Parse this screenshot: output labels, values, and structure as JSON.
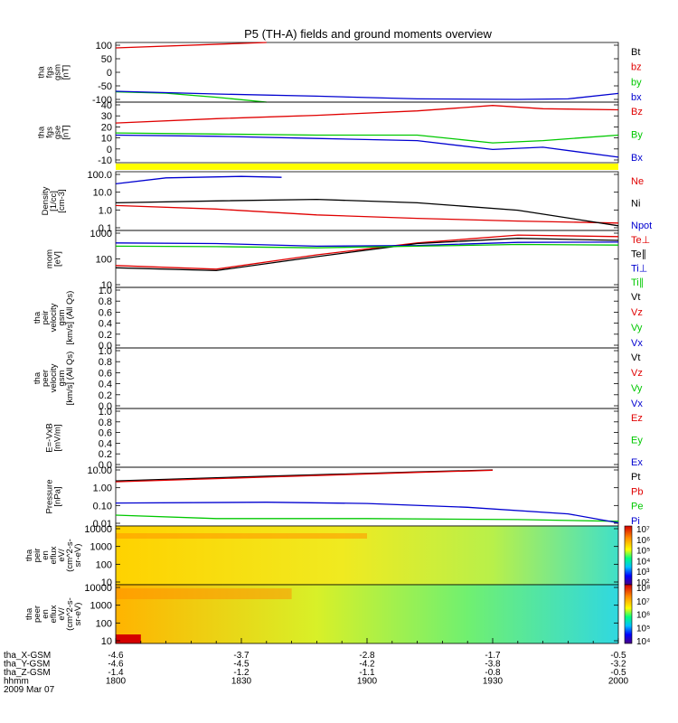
{
  "title": "P5 (TH-A) fields and ground moments overview",
  "colors": {
    "black": "#000000",
    "red": "#e00000",
    "green": "#00c800",
    "blue": "#0000d0",
    "yellow": "#ffff00"
  },
  "chart_data": [
    {
      "id": "fgs_gsm",
      "type": "line",
      "ylabel": [
        "tha",
        "fgs",
        "gsm",
        "[nT]"
      ],
      "yticks": [
        "100",
        "50",
        "0",
        "-50",
        "-100"
      ],
      "ylim": [
        -110,
        110
      ],
      "series": [
        {
          "name": "Bt",
          "color": "#000000",
          "points": []
        },
        {
          "name": "bz",
          "color": "#e00000",
          "points": [
            [
              0,
              90
            ],
            [
              0.3,
              110
            ]
          ]
        },
        {
          "name": "by",
          "color": "#00c800",
          "points": [
            [
              0,
              -72
            ],
            [
              0.1,
              -77
            ],
            [
              0.2,
              -92
            ],
            [
              0.3,
              -110
            ]
          ]
        },
        {
          "name": "bx",
          "color": "#0000d0",
          "points": [
            [
              0,
              -70
            ],
            [
              0.2,
              -80
            ],
            [
              0.4,
              -88
            ],
            [
              0.6,
              -98
            ],
            [
              0.8,
              -100
            ],
            [
              0.9,
              -98
            ],
            [
              1,
              -78
            ]
          ]
        }
      ]
    },
    {
      "id": "fgs_gse",
      "type": "line",
      "ylabel": [
        "tha",
        "fgs",
        "gse",
        "[nT]"
      ],
      "yticks": [
        "40",
        "30",
        "20",
        "10",
        "0",
        "-10"
      ],
      "ylim": [
        -15,
        40
      ],
      "series": [
        {
          "name": "Bz",
          "color": "#e00000",
          "points": [
            [
              0,
              21
            ],
            [
              0.2,
              25
            ],
            [
              0.4,
              28
            ],
            [
              0.6,
              32
            ],
            [
              0.75,
              37
            ],
            [
              0.85,
              34
            ],
            [
              1,
              33
            ]
          ]
        },
        {
          "name": "By",
          "color": "#00c800",
          "points": [
            [
              0,
              12
            ],
            [
              0.2,
              11
            ],
            [
              0.4,
              10
            ],
            [
              0.6,
              10
            ],
            [
              0.75,
              3
            ],
            [
              0.85,
              5
            ],
            [
              1,
              10
            ]
          ]
        },
        {
          "name": "Bx",
          "color": "#0000d0",
          "points": [
            [
              0,
              10
            ],
            [
              0.2,
              9
            ],
            [
              0.4,
              7
            ],
            [
              0.6,
              5
            ],
            [
              0.75,
              -3
            ],
            [
              0.85,
              -1
            ],
            [
              1,
              -10
            ]
          ]
        }
      ]
    },
    {
      "id": "density",
      "type": "line",
      "ylabel": [
        "Density",
        "[1/cc]",
        "[cm-3]"
      ],
      "yticks": [
        "100.0",
        "10.0",
        "1.0",
        "0.1"
      ],
      "ylog": true,
      "ylim": [
        0.05,
        300
      ],
      "series": [
        {
          "name": "Ne",
          "color": "#e00000",
          "points": [
            [
              0,
              2
            ],
            [
              0.2,
              1.2
            ],
            [
              0.4,
              0.5
            ],
            [
              0.6,
              0.3
            ],
            [
              0.8,
              0.2
            ],
            [
              1,
              0.15
            ]
          ]
        },
        {
          "name": "Ni",
          "color": "#000000",
          "points": [
            [
              0,
              3
            ],
            [
              0.2,
              4
            ],
            [
              0.4,
              5
            ],
            [
              0.6,
              3
            ],
            [
              0.8,
              1
            ],
            [
              1,
              0.1
            ]
          ]
        },
        {
          "name": "Npot",
          "color": "#0000d0",
          "points": [
            [
              0,
              50
            ],
            [
              0.1,
              120
            ],
            [
              0.25,
              150
            ],
            [
              0.33,
              130
            ]
          ]
        }
      ]
    },
    {
      "id": "mom",
      "type": "line",
      "ylabel": [
        "mom",
        "[eV]"
      ],
      "yticks": [
        "1000",
        "100",
        "10"
      ],
      "ylog": true,
      "ylim": [
        8,
        1200
      ],
      "series": [
        {
          "name": "Te⊥",
          "color": "#e00000",
          "points": [
            [
              0,
              55
            ],
            [
              0.2,
              40
            ],
            [
              0.4,
              140
            ],
            [
              0.6,
              400
            ],
            [
              0.8,
              800
            ],
            [
              1,
              700
            ]
          ]
        },
        {
          "name": "Te∥",
          "color": "#000000",
          "points": [
            [
              0,
              45
            ],
            [
              0.2,
              35
            ],
            [
              0.4,
              120
            ],
            [
              0.6,
              380
            ],
            [
              0.8,
              600
            ],
            [
              1,
              500
            ]
          ]
        },
        {
          "name": "Ti⊥",
          "color": "#0000d0",
          "points": [
            [
              0,
              400
            ],
            [
              0.2,
              380
            ],
            [
              0.4,
              300
            ],
            [
              0.6,
              320
            ],
            [
              0.8,
              420
            ],
            [
              1,
              430
            ]
          ]
        },
        {
          "name": "Ti∥",
          "color": "#00c800",
          "points": [
            [
              0,
              300
            ],
            [
              0.2,
              290
            ],
            [
              0.4,
              260
            ],
            [
              0.6,
              300
            ],
            [
              0.8,
              350
            ],
            [
              1,
              330
            ]
          ]
        }
      ]
    },
    {
      "id": "peir_vel",
      "type": "line",
      "ylabel": [
        "tha",
        "peir",
        "velocity",
        "gsm",
        "[km/s] (All Qs)"
      ],
      "yticks": [
        "1.0",
        "0.8",
        "0.6",
        "0.4",
        "0.2",
        "0.0"
      ],
      "ylim": [
        0,
        1
      ],
      "series": [
        {
          "name": "Vt",
          "color": "#000000"
        },
        {
          "name": "Vz",
          "color": "#e00000"
        },
        {
          "name": "Vy",
          "color": "#00c800"
        },
        {
          "name": "Vx",
          "color": "#0000d0"
        }
      ]
    },
    {
      "id": "peer_vel",
      "type": "line",
      "ylabel": [
        "tha",
        "peer",
        "velocity",
        "gsm",
        "[km/s] (All Qs)"
      ],
      "yticks": [
        "1.0",
        "0.8",
        "0.6",
        "0.4",
        "0.2",
        "0.0"
      ],
      "ylim": [
        0,
        1
      ],
      "series": [
        {
          "name": "Vt",
          "color": "#000000"
        },
        {
          "name": "Vz",
          "color": "#e00000"
        },
        {
          "name": "Vy",
          "color": "#00c800"
        },
        {
          "name": "Vx",
          "color": "#0000d0"
        }
      ]
    },
    {
      "id": "efield",
      "type": "line",
      "ylabel": [
        "E=-VxB",
        "[mV/m]"
      ],
      "yticks": [
        "1.0",
        "0.8",
        "0.6",
        "0.4",
        "0.2",
        "0.0"
      ],
      "ylim": [
        0,
        1
      ],
      "series": [
        {
          "name": "Ez",
          "color": "#e00000"
        },
        {
          "name": "Ey",
          "color": "#00c800"
        },
        {
          "name": "Ex",
          "color": "#0000d0"
        }
      ]
    },
    {
      "id": "pressure",
      "type": "line",
      "ylabel": [
        "Pressure",
        "[nPa]"
      ],
      "yticks": [
        "10.00",
        "1.00",
        "0.10",
        "0.01"
      ],
      "ylog": true,
      "ylim": [
        0.005,
        30
      ],
      "series": [
        {
          "name": "Pt",
          "color": "#000000",
          "points": [
            [
              0,
              4
            ],
            [
              0.3,
              8
            ],
            [
              0.6,
              15
            ],
            [
              0.75,
              20
            ]
          ]
        },
        {
          "name": "Pb",
          "color": "#e00000",
          "points": [
            [
              0,
              3.5
            ],
            [
              0.3,
              7
            ],
            [
              0.6,
              14
            ],
            [
              0.75,
              19
            ]
          ]
        },
        {
          "name": "Pe",
          "color": "#00c800",
          "points": [
            [
              0,
              0.025
            ],
            [
              0.2,
              0.015
            ],
            [
              0.5,
              0.015
            ],
            [
              0.8,
              0.013
            ],
            [
              1,
              0.01
            ]
          ]
        },
        {
          "name": "Pi",
          "color": "#0000d0",
          "points": [
            [
              0,
              0.15
            ],
            [
              0.3,
              0.17
            ],
            [
              0.5,
              0.14
            ],
            [
              0.7,
              0.08
            ],
            [
              0.9,
              0.03
            ],
            [
              1,
              0.008
            ]
          ]
        }
      ]
    },
    {
      "id": "peir_spec",
      "type": "heatmap",
      "ylabel": [
        "tha",
        "peir",
        "en",
        "eflux",
        "eV/",
        "(cm^2-s-",
        "sr-eV)"
      ],
      "yticks": [
        "10000",
        "1000",
        "100",
        "10"
      ],
      "colorbar": [
        "10⁷",
        "10⁶",
        "10⁵",
        "10⁴",
        "10³",
        "10²"
      ]
    },
    {
      "id": "peer_spec",
      "type": "heatmap",
      "ylabel": [
        "tha",
        "peer",
        "en",
        "eflux",
        "eV/",
        "(cm^2-s-",
        "sr-eV)"
      ],
      "yticks": [
        "10000",
        "1000",
        "100",
        "10"
      ],
      "colorbar": [
        "10⁸",
        "10⁷",
        "10⁶",
        "10⁵",
        "10⁴"
      ]
    }
  ],
  "xaxis": {
    "rows": [
      {
        "label": "tha_X-GSM",
        "values": [
          "-4.6",
          "-3.7",
          "-2.8",
          "-1.7",
          "-0.5"
        ]
      },
      {
        "label": "tha_Y-GSM",
        "values": [
          "-4.6",
          "-4.5",
          "-4.2",
          "-3.8",
          "-3.2"
        ]
      },
      {
        "label": "tha_Z-GSM",
        "values": [
          "-1.4",
          "-1.2",
          "-1.1",
          "-0.8",
          "-0.5"
        ]
      },
      {
        "label": "hhmm",
        "values": [
          "1800",
          "1830",
          "1900",
          "1930",
          "2000"
        ]
      }
    ],
    "date": "2009 Mar 07"
  }
}
